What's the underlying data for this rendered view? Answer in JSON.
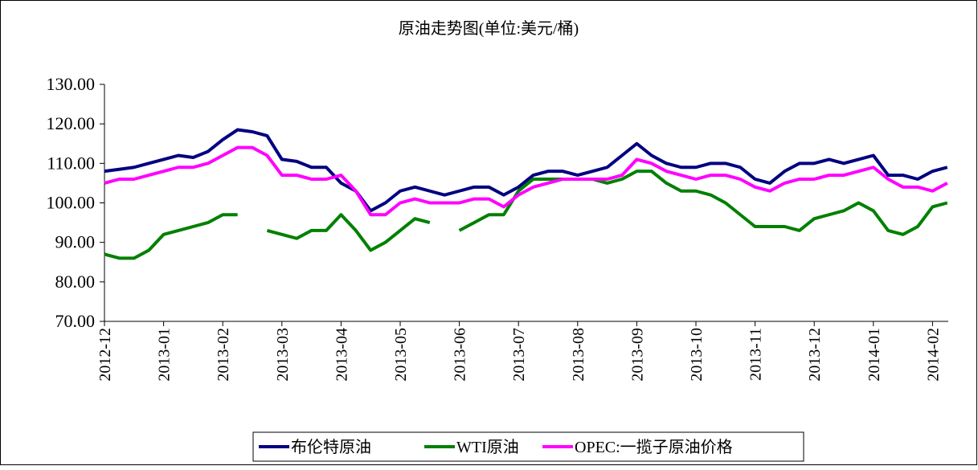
{
  "chart_data": {
    "type": "line",
    "title": "原油走势图(单位:美元/桶)",
    "categories": [
      "2012-12",
      null,
      null,
      null,
      "2013-01",
      null,
      null,
      null,
      "2013-02",
      null,
      null,
      null,
      "2013-03",
      null,
      null,
      null,
      "2013-04",
      null,
      null,
      null,
      "2013-05",
      null,
      null,
      null,
      "2013-06",
      null,
      null,
      null,
      "2013-07",
      null,
      null,
      null,
      "2013-08",
      null,
      null,
      null,
      "2013-09",
      null,
      null,
      null,
      "2013-10",
      null,
      null,
      null,
      "2013-11",
      null,
      null,
      null,
      "2013-12",
      null,
      null,
      null,
      "2014-01",
      null,
      null,
      null,
      "2014-02",
      null
    ],
    "series": [
      {
        "name": "布伦特原油",
        "color": "#000080",
        "values": [
          108,
          108.5,
          109,
          110,
          111,
          112,
          111.5,
          113,
          116,
          118.5,
          118,
          117,
          111,
          110.5,
          109,
          109,
          105,
          103,
          98,
          100,
          103,
          104,
          103,
          102,
          103,
          104,
          104,
          102,
          104,
          107,
          108,
          108,
          107,
          108,
          109,
          112,
          115,
          112,
          110,
          109,
          109,
          110,
          110,
          109,
          106,
          105,
          108,
          110,
          110,
          111,
          110,
          111,
          112,
          107,
          107,
          106,
          108,
          109
        ]
      },
      {
        "name": "WTI原油",
        "color": "#008000",
        "values": [
          87,
          86,
          86,
          88,
          92,
          93,
          94,
          95,
          97,
          97,
          null,
          93,
          92,
          91,
          93,
          93,
          97,
          93,
          88,
          90,
          93,
          96,
          95,
          null,
          93,
          95,
          97,
          97,
          103,
          106,
          106,
          106,
          106,
          106,
          105,
          106,
          108,
          108,
          105,
          103,
          103,
          102,
          100,
          97,
          94,
          94,
          94,
          93,
          96,
          97,
          98,
          100,
          98,
          93,
          92,
          94,
          99,
          100
        ]
      },
      {
        "name": "OPEC:一揽子原油价格",
        "color": "#ff00ff",
        "values": [
          105,
          106,
          106,
          107,
          108,
          109,
          109,
          110,
          112,
          114,
          114,
          112,
          107,
          107,
          106,
          106,
          107,
          103,
          97,
          97,
          100,
          101,
          100,
          100,
          100,
          101,
          101,
          99,
          102,
          104,
          105,
          106,
          106,
          106,
          106,
          107,
          111,
          110,
          108,
          107,
          106,
          107,
          107,
          106,
          104,
          103,
          105,
          106,
          106,
          107,
          107,
          108,
          109,
          106,
          104,
          104,
          103,
          105
        ]
      }
    ],
    "ylim": [
      70,
      130
    ],
    "yticks": [
      {
        "value": 70,
        "label": "70.00"
      },
      {
        "value": 80,
        "label": "80.00"
      },
      {
        "value": 90,
        "label": "90.00"
      },
      {
        "value": 100,
        "label": "100.00"
      },
      {
        "value": 110,
        "label": "110.00"
      },
      {
        "value": 120,
        "label": "120.00"
      },
      {
        "value": 130,
        "label": "130.00"
      }
    ],
    "legend": "bottom"
  }
}
